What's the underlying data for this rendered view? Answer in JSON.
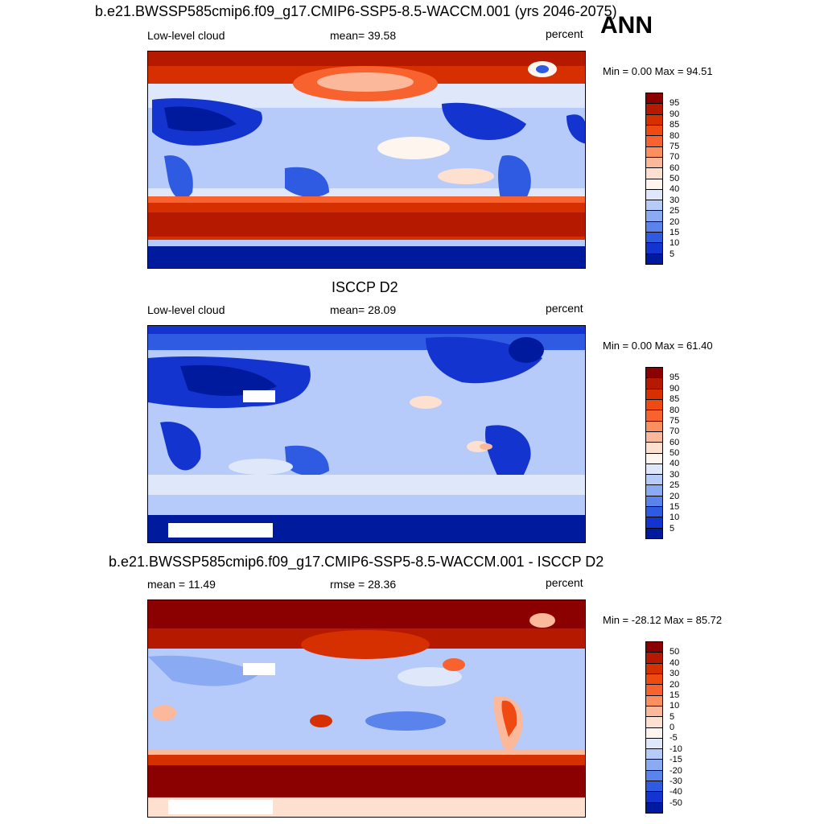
{
  "season": "ANN",
  "panels": [
    {
      "title": "b.e21.BWSSP585cmip6.f09_g17.CMIP6-SSP5-8.5-WACCM.001 (yrs 2046-2075)",
      "left_label": "Low-level cloud",
      "center_label": "mean=  39.58",
      "units": "percent",
      "minmax": "Min =   0.00 Max =  94.51",
      "colorbar_labels": [
        "95",
        "90",
        "85",
        "80",
        "75",
        "70",
        "60",
        "50",
        "40",
        "30",
        "25",
        "20",
        "15",
        "10",
        "5"
      ],
      "colorbar_colors": [
        "#8b0000",
        "#b51a00",
        "#d73000",
        "#ee4a12",
        "#f8622e",
        "#fb8f5e",
        "#fcb89a",
        "#fde0cf",
        "#fef6ee",
        "#dfe8fb",
        "#b6cbf9",
        "#8aaaf3",
        "#5b83ec",
        "#2f5ae2",
        "#1434cf",
        "#001a9e"
      ]
    },
    {
      "title": "ISCCP D2",
      "left_label": "Low-level cloud",
      "center_label": "mean=  28.09",
      "units": "percent",
      "minmax": "Min =   0.00 Max =  61.40",
      "colorbar_labels": [
        "95",
        "90",
        "85",
        "80",
        "75",
        "70",
        "60",
        "50",
        "40",
        "30",
        "25",
        "20",
        "15",
        "10",
        "5"
      ],
      "colorbar_colors": [
        "#8b0000",
        "#b51a00",
        "#d73000",
        "#ee4a12",
        "#f8622e",
        "#fb8f5e",
        "#fcb89a",
        "#fde0cf",
        "#fef6ee",
        "#dfe8fb",
        "#b6cbf9",
        "#8aaaf3",
        "#5b83ec",
        "#2f5ae2",
        "#1434cf",
        "#001a9e"
      ]
    },
    {
      "title": "b.e21.BWSSP585cmip6.f09_g17.CMIP6-SSP5-8.5-WACCM.001 - ISCCP D2",
      "left_label": "mean =  11.49",
      "center_label": "rmse =  28.36",
      "units": "percent",
      "minmax": "Min = -28.12 Max =  85.72",
      "colorbar_labels": [
        "50",
        "40",
        "30",
        "20",
        "15",
        "10",
        "5",
        "0",
        "-5",
        "-10",
        "-15",
        "-20",
        "-30",
        "-40",
        "-50"
      ],
      "colorbar_colors": [
        "#8b0000",
        "#b51a00",
        "#d73000",
        "#ee4a12",
        "#f8622e",
        "#fb8f5e",
        "#fcb89a",
        "#fde0cf",
        "#fef6ee",
        "#dfe8fb",
        "#b6cbf9",
        "#8aaaf3",
        "#5b83ec",
        "#2f5ae2",
        "#1434cf",
        "#001a9e"
      ]
    }
  ]
}
